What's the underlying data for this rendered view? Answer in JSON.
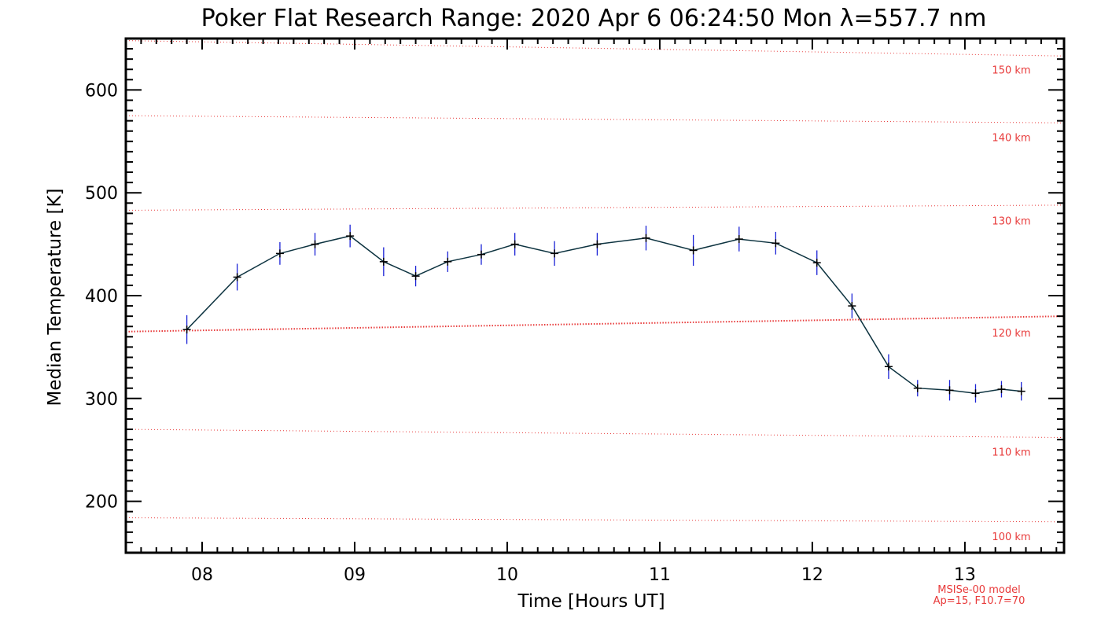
{
  "chart_data": {
    "type": "line",
    "title": "Poker Flat Research Range: 2020 Apr  6 06:24:50 Mon λ=557.7 nm",
    "xlabel": "Time [Hours UT]",
    "ylabel": "Median Temperature [K]",
    "xlim": [
      7.5,
      13.65
    ],
    "ylim": [
      150,
      650
    ],
    "x_ticks": [
      8,
      9,
      10,
      11,
      12,
      13
    ],
    "x_tick_labels": [
      "08",
      "09",
      "10",
      "11",
      "12",
      "13"
    ],
    "y_ticks": [
      200,
      300,
      400,
      500,
      600
    ],
    "y_tick_labels": [
      "200",
      "300",
      "400",
      "500",
      "600"
    ],
    "grid": false,
    "series": [
      {
        "type": "line-errorbar",
        "color": "#0d3340",
        "error_color": "#1a22d6",
        "x": [
          7.9,
          8.23,
          8.51,
          8.74,
          8.97,
          9.19,
          9.4,
          9.61,
          9.83,
          10.05,
          10.31,
          10.59,
          10.91,
          11.22,
          11.52,
          11.76,
          12.03,
          12.26,
          12.5,
          12.69,
          12.9,
          13.07,
          13.24,
          13.37
        ],
        "y": [
          367,
          418,
          441,
          450,
          458,
          433,
          419,
          433,
          440,
          450,
          441,
          450,
          456,
          444,
          455,
          451,
          432,
          390,
          331,
          310,
          308,
          305,
          309,
          307
        ],
        "error": [
          14,
          13,
          11,
          11,
          11,
          14,
          10,
          10,
          10,
          11,
          12,
          11,
          12,
          15,
          12,
          11,
          12,
          12,
          12,
          8,
          10,
          9,
          8,
          9
        ]
      }
    ],
    "model_lines": {
      "color": "#e83a3a",
      "style": "dotted",
      "x_range": [
        7.5,
        13.65
      ],
      "lines": [
        {
          "label": "100 km",
          "y_start": 184,
          "y_end": 180
        },
        {
          "label": "110 km",
          "y_start": 270,
          "y_end": 262
        },
        {
          "label": "120 km",
          "y_start": 365,
          "y_end": 380,
          "emphasized": true
        },
        {
          "label": "130 km",
          "y_start": 483,
          "y_end": 488
        },
        {
          "label": "140 km",
          "y_start": 575,
          "y_end": 568
        },
        {
          "label": "150 km",
          "y_start": 648,
          "y_end": 633
        }
      ]
    },
    "annotations": [
      "MSISe-00 model",
      "Ap=15, F10.7=70"
    ]
  }
}
